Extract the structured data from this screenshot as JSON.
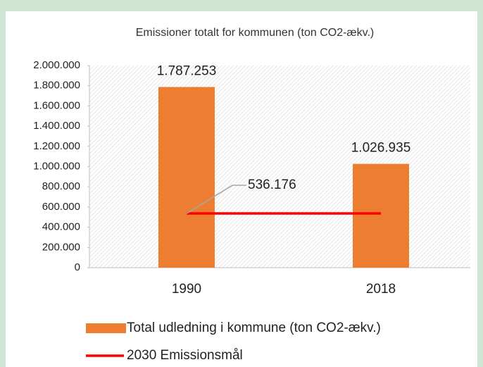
{
  "chart_data": {
    "type": "bar",
    "title": "Emissioner totalt for kommunen (ton CO2-ækv.)",
    "categories": [
      "1990",
      "2018"
    ],
    "series": [
      {
        "name": "Total udledning i kommune (ton CO2-ækv.)",
        "type": "bar",
        "color": "#ed7d31",
        "values": [
          1787253,
          1026935
        ],
        "value_labels": [
          "1.787.253",
          "1.026.935"
        ]
      },
      {
        "name": "2030 Emissionsmål",
        "type": "line",
        "color": "#ff0000",
        "values": [
          536176,
          536176
        ],
        "value_labels": [
          "536.176",
          null
        ]
      }
    ],
    "ylim": [
      0,
      2000000
    ],
    "yticks": [
      0,
      {
        "value": 200000,
        "label": "200.000"
      },
      {
        "value": 400000,
        "label": "400.000"
      },
      {
        "value": 600000,
        "label": "600.000"
      },
      {
        "value": 800000,
        "label": "800.000"
      },
      {
        "value": 1000000,
        "label": "1.000.000"
      },
      {
        "value": 1200000,
        "label": "1.200.000"
      },
      {
        "value": 1400000,
        "label": "1.400.000"
      },
      {
        "value": 1600000,
        "label": "1.600.000"
      },
      {
        "value": 1800000,
        "label": "1.800.000"
      },
      {
        "value": 2000000,
        "label": "2.000.000"
      }
    ]
  }
}
